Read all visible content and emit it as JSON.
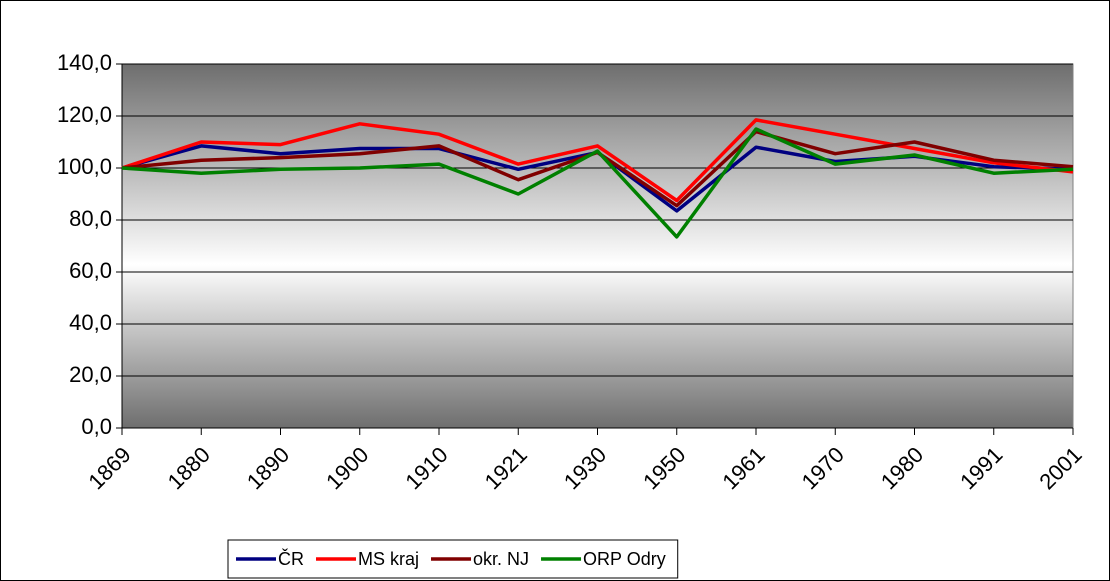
{
  "chart_data": {
    "type": "line",
    "categories": [
      "1869",
      "1880",
      "1890",
      "1900",
      "1910",
      "1921",
      "1930",
      "1950",
      "1961",
      "1970",
      "1980",
      "1991",
      "2001"
    ],
    "series": [
      {
        "name": "ČR",
        "color": "#000080",
        "values": [
          100,
          108.5,
          105.5,
          107.5,
          107.5,
          99.5,
          106,
          83.5,
          108,
          102.5,
          104.5,
          100.5,
          99.5
        ]
      },
      {
        "name": "MS kraj",
        "color": "#ff0000",
        "values": [
          100,
          110,
          109,
          117,
          113,
          101.5,
          108.5,
          87.5,
          118.5,
          113,
          107.5,
          102,
          98.5
        ]
      },
      {
        "name": "okr. NJ",
        "color": "#800000",
        "values": [
          100,
          103,
          104,
          105.5,
          108.5,
          95.5,
          106,
          85.5,
          114,
          105.5,
          110,
          103,
          100.5
        ]
      },
      {
        "name": "ORP Odry",
        "color": "#008000",
        "values": [
          100,
          98,
          99.5,
          100,
          101.5,
          90,
          106.5,
          73.5,
          115,
          101.5,
          105,
          98,
          99.5
        ]
      }
    ],
    "ylim": [
      0,
      140
    ],
    "yticks": [
      {
        "value": 0,
        "label": "0,0"
      },
      {
        "value": 20,
        "label": "20,0"
      },
      {
        "value": 40,
        "label": "40,0"
      },
      {
        "value": 60,
        "label": "60,0"
      },
      {
        "value": 80,
        "label": "80,0"
      },
      {
        "value": 100,
        "label": "100,0"
      },
      {
        "value": 120,
        "label": "120,0"
      },
      {
        "value": 140,
        "label": "140,0"
      }
    ],
    "grid": true,
    "legend": "bottom"
  }
}
